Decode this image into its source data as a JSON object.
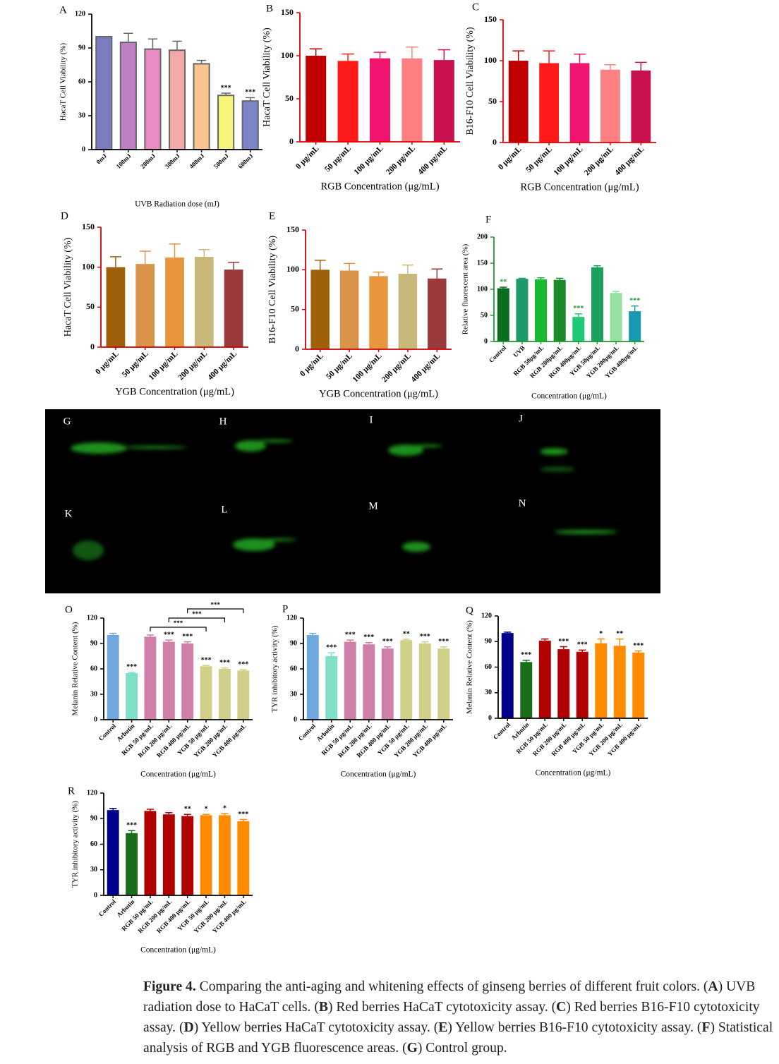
{
  "chart_data": [
    {
      "type": "bar",
      "panel": "A",
      "ylabel": "HacaT Cell Viability (%)",
      "xlabel": "UVB Radiation dose (mJ)",
      "categories": [
        "0mJ",
        "100mJ",
        "200mJ",
        "300mJ",
        "400mJ",
        "500mJ",
        "600mJ"
      ],
      "values": [
        100,
        95,
        89,
        88,
        76,
        48,
        43
      ],
      "errors": [
        0,
        8,
        9,
        8,
        3,
        2,
        3
      ],
      "colors": [
        "#7b7bbf",
        "#c07fc4",
        "#e88bc4",
        "#f4a9a9",
        "#f9c48d",
        "#f5f57a",
        "#7b86c9"
      ],
      "significance": [
        null,
        null,
        null,
        null,
        null,
        "***",
        "***"
      ],
      "ylim": [
        0,
        120
      ],
      "yticks": [
        0,
        30,
        60,
        90,
        120
      ],
      "axis_color": "#000000",
      "bar_outline": "#666666"
    },
    {
      "type": "bar",
      "panel": "B",
      "ylabel": "HacaT Cell Viability (%)",
      "xlabel": "RGB Concentration (μg/mL)",
      "categories": [
        "0 μg/mL",
        "50 μg/mL",
        "100 μg/mL",
        "200 μg/mL",
        "400 μg/mL"
      ],
      "values": [
        100,
        94,
        97,
        97,
        95
      ],
      "errors": [
        8,
        8,
        7,
        13,
        12
      ],
      "colors": [
        "#c00000",
        "#ff1a1a",
        "#f0146e",
        "#ff8080",
        "#c8104f"
      ],
      "ylim": [
        0,
        150
      ],
      "yticks": [
        0,
        50,
        100,
        150
      ],
      "axis_color": "#e00000"
    },
    {
      "type": "bar",
      "panel": "C",
      "ylabel": "B16-F10 Cell Viability (%)",
      "xlabel": "RGB Concentration (μg/mL)",
      "categories": [
        "0 μg/mL",
        "50 μg/mL",
        "100 μg/mL",
        "200 μg/mL",
        "400 μg/mL"
      ],
      "values": [
        100,
        97,
        97,
        89,
        88
      ],
      "errors": [
        12,
        15,
        11,
        6,
        10
      ],
      "colors": [
        "#c00000",
        "#ff1a1a",
        "#f0146e",
        "#ff8080",
        "#c8104f"
      ],
      "ylim": [
        0,
        150
      ],
      "yticks": [
        0,
        50,
        100,
        150
      ],
      "axis_color": "#e00000"
    },
    {
      "type": "bar",
      "panel": "D",
      "ylabel": "HacaT Cell Viability (%)",
      "xlabel": "YGB Concentration (μg/mL)",
      "categories": [
        "0 μg/mL",
        "50 μg/mL",
        "100 μg/mL",
        "200 μg/mL",
        "400 μg/mL"
      ],
      "values": [
        100,
        104,
        112,
        113,
        97
      ],
      "errors": [
        13,
        16,
        17,
        9,
        9
      ],
      "colors": [
        "#a0600a",
        "#d9944a",
        "#e8963c",
        "#c8b87a",
        "#9a3a3a"
      ],
      "ylim": [
        0,
        150
      ],
      "yticks": [
        0,
        50,
        100,
        150
      ],
      "axis_color": "#cc0000"
    },
    {
      "type": "bar",
      "panel": "E",
      "ylabel": "B16-F10 Cell Viability (%)",
      "xlabel": "YGB Concentration (μg/mL)",
      "categories": [
        "0 μg/mL",
        "50 μg/mL",
        "100 μg/mL",
        "200 μg/mL",
        "400 μg/mL"
      ],
      "values": [
        100,
        99,
        92,
        95,
        89
      ],
      "errors": [
        12,
        9,
        5,
        11,
        12
      ],
      "colors": [
        "#a0600a",
        "#d9944a",
        "#e8963c",
        "#c8b87a",
        "#9a3a3a"
      ],
      "ylim": [
        0,
        150
      ],
      "yticks": [
        0,
        50,
        100,
        150
      ],
      "axis_color": "#cc0000"
    },
    {
      "type": "bar",
      "panel": "F",
      "ylabel": "Relative fluorescent area (%)",
      "xlabel": "Concentration (μg/mL)",
      "categories": [
        "Control",
        "UVB",
        "RGB 50μg/mL",
        "RGB 200μg/mL",
        "RGB 400μg/mL",
        "YGB 50μg/mL",
        "YGB 200μg/mL",
        "YGB 400μg/mL"
      ],
      "values": [
        102,
        120,
        119,
        118,
        47,
        142,
        93,
        58
      ],
      "errors": [
        2,
        1,
        3,
        3,
        6,
        3,
        3,
        10
      ],
      "colors": [
        "#0a6e1e",
        "#1e9a6a",
        "#19b832",
        "#1a8a2a",
        "#1ec878",
        "#1aa060",
        "#96e0a0",
        "#1a9ab0"
      ],
      "significance": [
        "**",
        null,
        null,
        null,
        "***",
        null,
        null,
        "***"
      ],
      "significance_color": "#1a9a2a",
      "ylim": [
        0,
        200
      ],
      "yticks": [
        0,
        50,
        100,
        150,
        200
      ],
      "axis_color": "#1a9a2a"
    },
    {
      "type": "bar",
      "panel": "O",
      "ylabel": "Melanin Relative Content (%)",
      "xlabel": "Concentration (μg/mL)",
      "categories": [
        "Control",
        "Arbutin",
        "RGB 50 μg/mL",
        "RGB 200 μg/mL",
        "RGB 400 μg/mL",
        "YGB 50 μg/mL",
        "YGB 200 μg/mL",
        "YGB 400 μg/mL"
      ],
      "values": [
        100,
        55,
        98,
        92,
        90,
        63,
        60,
        58
      ],
      "errors": [
        2,
        1,
        2,
        2,
        2,
        1,
        1,
        1
      ],
      "colors": [
        "#6fa8dc",
        "#7fe0c8",
        "#d07fa8",
        "#d07fa8",
        "#d07fa8",
        "#d0d08a",
        "#d0d08a",
        "#d0d08a"
      ],
      "significance": [
        null,
        "***",
        null,
        "***",
        "***",
        "***",
        "***",
        "***"
      ],
      "brackets": [
        {
          "from": 2,
          "to": 5,
          "label": "***"
        },
        {
          "from": 3,
          "to": 6,
          "label": "***"
        },
        {
          "from": 4,
          "to": 7,
          "label": "***"
        }
      ],
      "ylim": [
        0,
        120
      ],
      "yticks": [
        0,
        30,
        60,
        90,
        120
      ],
      "axis_color": "#000000"
    },
    {
      "type": "bar",
      "panel": "P",
      "ylabel": "TYR inhibitory activity (%)",
      "xlabel": "Concentration (μg/mL)",
      "categories": [
        "Control",
        "Arbutin",
        "RGB 50 μg/mL",
        "RGB 200 μg/mL",
        "RGB 400 μg/mL",
        "YGB 50 μg/mL",
        "YGB 200 μg/mL",
        "YGB 400 μg/mL"
      ],
      "values": [
        100,
        75,
        92,
        89,
        84,
        94,
        90,
        84
      ],
      "errors": [
        2,
        4,
        2,
        2,
        2,
        1,
        2,
        2
      ],
      "colors": [
        "#6fa8dc",
        "#7fe0c8",
        "#d07fa8",
        "#d07fa8",
        "#d07fa8",
        "#d0d08a",
        "#d0d08a",
        "#d0d08a"
      ],
      "significance": [
        null,
        "***",
        "***",
        "***",
        "***",
        "**",
        "***",
        "***"
      ],
      "ylim": [
        0,
        120
      ],
      "yticks": [
        0,
        30,
        60,
        90,
        120
      ],
      "axis_color": "#000000"
    },
    {
      "type": "bar",
      "panel": "Q",
      "ylabel": "Melanin Relative Content (%)",
      "xlabel": "Concentration (μg/mL)",
      "categories": [
        "Control",
        "Arbutin",
        "RGB 50 μg/mL",
        "RGB 200 μg/mL",
        "RGB 400 μg/mL",
        "YGB 50 μg/mL",
        "YGB 200 μg/mL",
        "YGB 400 μg/mL"
      ],
      "values": [
        100,
        66,
        91,
        81,
        78,
        88,
        85,
        77
      ],
      "errors": [
        1,
        2,
        2,
        3,
        2,
        5,
        8,
        2
      ],
      "colors": [
        "#00008b",
        "#1a6e1a",
        "#b00000",
        "#b00000",
        "#b00000",
        "#ff8c00",
        "#ff8c00",
        "#ff8c00"
      ],
      "significance": [
        null,
        "***",
        null,
        "***",
        "***",
        "*",
        "**",
        "***"
      ],
      "ylim": [
        0,
        120
      ],
      "yticks": [
        0,
        30,
        60,
        90,
        120
      ],
      "axis_color": "#000000"
    },
    {
      "type": "bar",
      "panel": "R",
      "ylabel": "TYR inhibitory activity (%)",
      "xlabel": "Concentration (μg/mL)",
      "categories": [
        "Control",
        "Arbutin",
        "RGB 50 μg/mL",
        "RGB 200 μg/mL",
        "RGB 400 μg/mL",
        "YGB 50 μg/mL",
        "YGB 200 μg/mL",
        "YGB 400 μg/mL"
      ],
      "values": [
        100,
        73,
        99,
        95,
        93,
        94,
        94,
        87
      ],
      "errors": [
        2,
        3,
        2,
        2,
        2,
        1,
        2,
        2
      ],
      "colors": [
        "#00008b",
        "#1a6e1a",
        "#b00000",
        "#b00000",
        "#b00000",
        "#ff8c00",
        "#ff8c00",
        "#ff8c00"
      ],
      "significance": [
        null,
        "***",
        null,
        null,
        "**",
        "*",
        "*",
        "***"
      ],
      "ylim": [
        0,
        120
      ],
      "yticks": [
        0,
        30,
        60,
        90,
        120
      ],
      "axis_color": "#000000"
    }
  ],
  "image_panel": {
    "labels": [
      "G",
      "H",
      "I",
      "J",
      "K",
      "L",
      "M",
      "N"
    ]
  },
  "caption": {
    "segments": [
      "Figure 4.",
      " Comparing the anti-aging and whitening effects of ginseng berries of different fruit colors. (",
      "A",
      ") UVB radiation dose to HaCaT cells. (",
      "B",
      ") Red berries HaCaT cytotoxicity assay. (",
      "C",
      ") Red berries B16-F10 cytotoxicity assay. (",
      "D",
      ") Yellow berries HaCaT cytotoxicity assay. (",
      "E",
      ") Yellow berries B16-F10 cytotoxicity assay. (",
      "F",
      ") Statistical analysis of RGB and YGB fluorescence areas. (",
      "G",
      ") Control group."
    ]
  }
}
